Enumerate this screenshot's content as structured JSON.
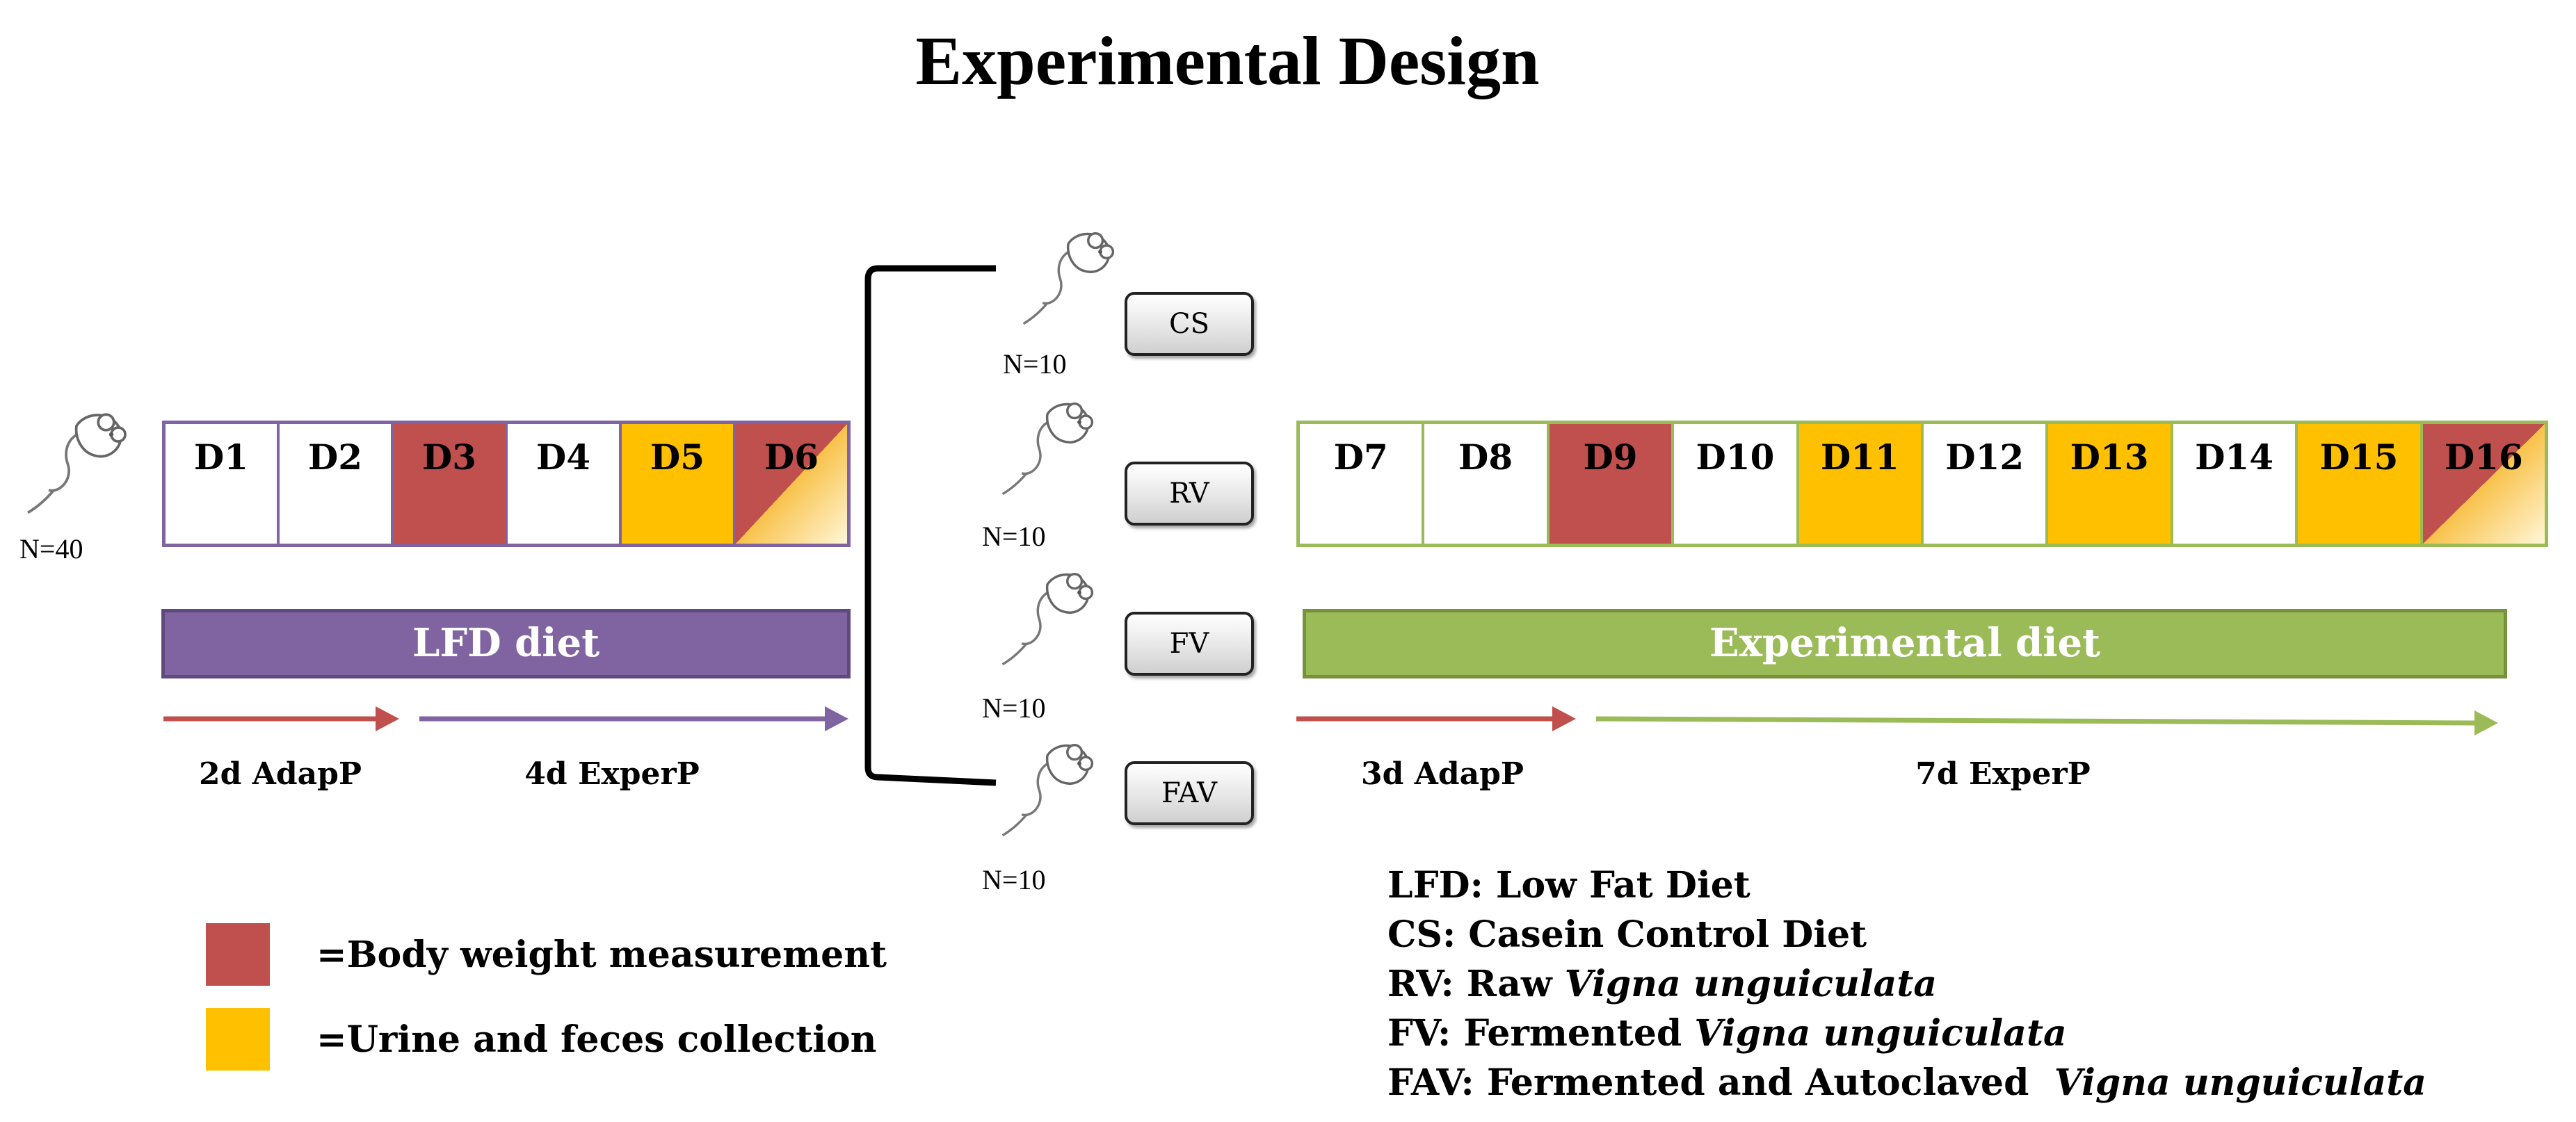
{
  "title": "Experimental Design",
  "colors": {
    "phase1": "#8064a2",
    "phase2": "#9bbb59",
    "body_weight": "#c0504d",
    "collection": "#ffc000",
    "arrow_adaptation": "#c0504d",
    "bracket": "#000000"
  },
  "phase1": {
    "population": "N=40",
    "days": [
      {
        "label": "D1",
        "fill": "white"
      },
      {
        "label": "D2",
        "fill": "white"
      },
      {
        "label": "D3",
        "fill": "body_weight"
      },
      {
        "label": "D4",
        "fill": "white"
      },
      {
        "label": "D5",
        "fill": "collection"
      },
      {
        "label": "D6",
        "fill": "both"
      }
    ],
    "diet": "LFD diet",
    "adaptation_label": "2d AdapP",
    "experimental_label": "4d ExperP"
  },
  "groups": [
    {
      "label": "CS",
      "n": "N=10"
    },
    {
      "label": "RV",
      "n": "N=10"
    },
    {
      "label": "FV",
      "n": "N=10"
    },
    {
      "label": "FAV",
      "n": "N=10"
    }
  ],
  "phase2": {
    "days": [
      {
        "label": "D7",
        "fill": "white"
      },
      {
        "label": "D8",
        "fill": "white"
      },
      {
        "label": "D9",
        "fill": "body_weight"
      },
      {
        "label": "D10",
        "fill": "white"
      },
      {
        "label": "D11",
        "fill": "collection"
      },
      {
        "label": "D12",
        "fill": "white"
      },
      {
        "label": "D13",
        "fill": "collection"
      },
      {
        "label": "D14",
        "fill": "white"
      },
      {
        "label": "D15",
        "fill": "collection"
      },
      {
        "label": "D16",
        "fill": "both"
      }
    ],
    "diet": "Experimental  diet",
    "adaptation_label": "3d AdapP",
    "experimental_label": "7d ExperP"
  },
  "legend": {
    "body_weight": "=Body weight measurement",
    "collection": "=Urine and feces collection"
  },
  "abbreviations": [
    {
      "key": "LFD: ",
      "text": "Low Fat Diet"
    },
    {
      "key": "CS: ",
      "text": "Casein Control Diet"
    },
    {
      "key": "RV: ",
      "text": "Raw ",
      "italic": "Vigna unguiculata"
    },
    {
      "key": "FV: ",
      "text": "Fermented ",
      "italic": "Vigna unguiculata"
    },
    {
      "key": "FAV: ",
      "text": "Fermented and Autoclaved  ",
      "italic": "Vigna unguiculata"
    }
  ]
}
